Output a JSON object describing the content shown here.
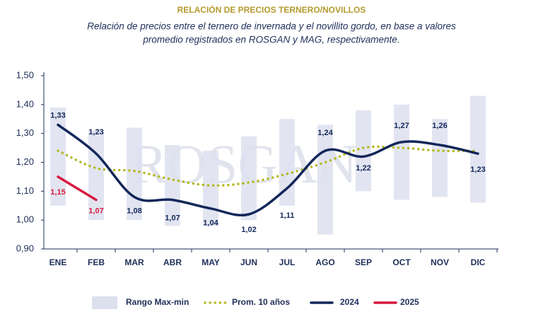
{
  "chart_data": {
    "type": "line",
    "title": "RELACIÓN DE PRECIOS TERNERO/NOVILLOS",
    "subtitle": [
      "Relación de precios entre el ternero de invernada y el novillito gordo, en base a valores",
      "promedio registrados en ROSGAN y MAG, respectivamente."
    ],
    "watermark": "ROSGAN",
    "categories": [
      "ENE",
      "FEB",
      "MAR",
      "ABR",
      "MAY",
      "JUN",
      "JUL",
      "AGO",
      "SEP",
      "OCT",
      "NOV",
      "DIC"
    ],
    "ylim": [
      0.9,
      1.5
    ],
    "yticks": [
      {
        "value": 0.9,
        "label": "0,90"
      },
      {
        "value": 1.0,
        "label": "1,00"
      },
      {
        "value": 1.1,
        "label": "1,10"
      },
      {
        "value": 1.2,
        "label": "1,20"
      },
      {
        "value": 1.3,
        "label": "1,30"
      },
      {
        "value": 1.4,
        "label": "1,40"
      },
      {
        "value": 1.5,
        "label": "1,50"
      }
    ],
    "range": {
      "name": "Rango Max-min",
      "color": "#dde1ee",
      "low": [
        1.05,
        1.0,
        1.0,
        0.98,
        0.98,
        1.0,
        1.05,
        0.95,
        1.1,
        1.07,
        1.08,
        1.06
      ],
      "high": [
        1.39,
        1.31,
        1.32,
        1.26,
        1.24,
        1.29,
        1.35,
        1.33,
        1.38,
        1.4,
        1.35,
        1.43
      ]
    },
    "series": [
      {
        "name": "Prom. 10 años",
        "color": "#b5b924",
        "style": "dotted",
        "values": [
          1.24,
          1.18,
          1.17,
          1.14,
          1.12,
          1.13,
          1.16,
          1.2,
          1.25,
          1.25,
          1.24,
          1.24
        ]
      },
      {
        "name": "2024",
        "color": "#13275a",
        "style": "solid",
        "values": [
          1.33,
          1.23,
          1.08,
          1.07,
          1.04,
          1.02,
          1.11,
          1.24,
          1.22,
          1.27,
          1.26,
          1.23
        ],
        "value_labels": [
          "1,33",
          "1,23",
          "1,08",
          "1,07",
          "1,04",
          "1,02",
          "1,11",
          "1,24",
          "1,22",
          "1,27",
          "1,26",
          "1,23"
        ]
      },
      {
        "name": "2025",
        "color": "#d7193f",
        "style": "solid",
        "values": [
          1.15,
          1.07,
          null,
          null,
          null,
          null,
          null,
          null,
          null,
          null,
          null,
          null
        ],
        "value_labels": [
          "1,15",
          "1,07",
          null,
          null,
          null,
          null,
          null,
          null,
          null,
          null,
          null,
          null
        ]
      }
    ]
  }
}
